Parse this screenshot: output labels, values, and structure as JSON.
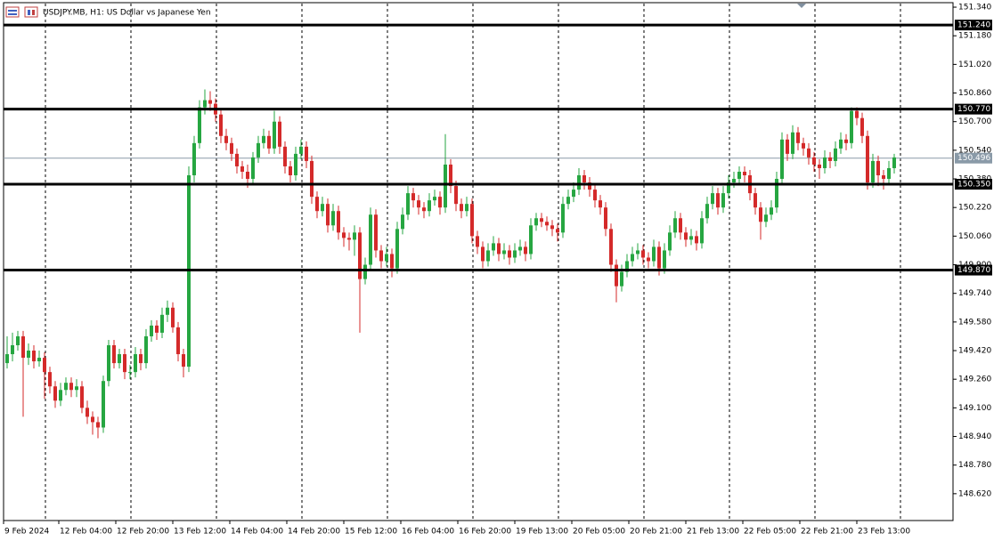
{
  "header": {
    "symbol_text": "USDJPY.MB, H1:  US Dollar vs Japanese Yen"
  },
  "chart_data": {
    "type": "candlestick",
    "open": [
      149.35,
      149.4,
      149.45,
      149.5,
      149.38,
      149.42,
      149.36,
      149.38,
      149.3,
      149.22,
      149.14,
      149.2,
      149.24,
      149.2,
      149.22,
      149.1,
      149.05,
      149.02,
      148.99,
      149.25,
      149.45,
      149.35,
      149.4,
      149.3,
      149.3,
      149.4,
      149.35,
      149.5,
      149.56,
      149.52,
      149.62,
      149.66,
      149.55,
      149.4,
      149.33,
      150.4,
      150.58,
      150.78,
      150.82,
      150.8,
      150.74,
      150.62,
      150.58,
      150.52,
      150.45,
      150.42,
      150.38,
      150.5,
      150.58,
      150.62,
      150.55,
      150.7,
      150.56,
      150.45,
      150.4,
      150.52,
      150.56,
      150.48,
      150.28,
      150.2,
      150.24,
      150.12,
      150.2,
      150.08,
      150.05,
      150.04,
      150.08,
      149.82,
      149.9,
      150.18,
      149.98,
      149.92,
      149.96,
      149.88,
      150.1,
      150.18,
      150.3,
      150.26,
      150.22,
      150.2,
      150.26,
      150.28,
      150.22,
      150.46,
      150.34,
      150.24,
      150.2,
      150.24,
      150.06,
      150.0,
      149.92,
      149.98,
      150.02,
      149.96,
      149.98,
      149.94,
      149.98,
      150.0,
      149.96,
      150.12,
      150.16,
      150.14,
      150.12,
      150.1,
      150.08,
      150.24,
      150.28,
      150.32,
      150.4,
      150.36,
      150.32,
      150.26,
      150.22,
      150.1,
      149.9,
      149.78,
      149.86,
      149.92,
      149.96,
      149.98,
      149.94,
      149.92,
      150.0,
      149.88,
      149.98,
      150.08,
      150.16,
      150.08,
      150.04,
      150.06,
      150.02,
      150.16,
      150.24,
      150.3,
      150.22,
      150.3,
      150.36,
      150.38,
      150.42,
      150.4,
      150.3,
      150.22,
      150.14,
      150.18,
      150.22,
      150.38,
      150.6,
      150.52,
      150.64,
      150.58,
      150.55,
      150.5,
      150.46,
      150.44,
      150.5,
      150.48,
      150.55,
      150.6,
      150.58,
      150.76,
      150.72,
      150.62,
      150.36,
      150.48,
      150.4,
      150.38,
      150.44
    ],
    "high": [
      149.5,
      149.52,
      149.53,
      149.53,
      149.46,
      149.45,
      149.42,
      149.41,
      149.33,
      149.25,
      149.24,
      149.27,
      149.27,
      149.26,
      149.25,
      149.14,
      149.08,
      149.05,
      149.28,
      149.48,
      149.48,
      149.43,
      149.43,
      149.34,
      149.44,
      149.43,
      149.54,
      149.59,
      149.59,
      149.66,
      149.7,
      149.69,
      149.58,
      149.43,
      150.45,
      150.62,
      150.82,
      150.88,
      150.87,
      150.83,
      150.77,
      150.66,
      150.61,
      150.55,
      150.48,
      150.46,
      150.53,
      150.62,
      150.66,
      150.65,
      150.76,
      150.73,
      150.59,
      150.48,
      150.56,
      150.6,
      150.59,
      150.51,
      150.31,
      150.28,
      150.27,
      150.24,
      150.23,
      150.11,
      150.08,
      150.12,
      150.11,
      149.94,
      150.22,
      150.21,
      150.01,
      150.0,
      149.99,
      150.14,
      150.22,
      150.34,
      150.33,
      150.29,
      150.25,
      150.3,
      150.32,
      150.31,
      150.63,
      150.49,
      150.37,
      150.27,
      150.28,
      150.27,
      150.09,
      150.03,
      150.02,
      150.06,
      150.05,
      150.02,
      150.01,
      150.02,
      150.04,
      150.03,
      150.16,
      150.19,
      150.19,
      150.17,
      150.15,
      150.13,
      150.28,
      150.32,
      150.36,
      150.44,
      150.43,
      150.39,
      150.35,
      150.29,
      150.25,
      150.13,
      149.93,
      149.9,
      149.96,
      150.0,
      150.02,
      150.01,
      149.97,
      150.04,
      150.03,
      150.02,
      150.12,
      150.2,
      150.19,
      150.11,
      150.1,
      150.09,
      150.2,
      150.28,
      150.34,
      150.33,
      150.34,
      150.4,
      150.42,
      150.45,
      150.45,
      150.43,
      150.33,
      150.25,
      150.22,
      150.26,
      150.42,
      150.64,
      150.63,
      150.68,
      150.67,
      150.61,
      150.58,
      150.53,
      150.49,
      150.54,
      150.53,
      150.59,
      150.64,
      150.63,
      150.78,
      150.78,
      150.75,
      150.65,
      150.52,
      150.51,
      150.43,
      150.48,
      150.52
    ],
    "low": [
      149.32,
      149.36,
      149.42,
      149.05,
      149.34,
      149.32,
      149.33,
      149.15,
      149.18,
      149.1,
      149.11,
      149.17,
      149.16,
      149.16,
      149.07,
      149.01,
      148.95,
      148.93,
      148.96,
      149.22,
      149.32,
      149.32,
      149.26,
      149.26,
      149.27,
      149.31,
      149.32,
      149.47,
      149.48,
      149.49,
      149.58,
      149.52,
      149.36,
      149.27,
      149.3,
      150.36,
      150.55,
      150.74,
      150.76,
      150.7,
      150.58,
      150.54,
      150.48,
      150.41,
      150.38,
      150.33,
      150.35,
      150.47,
      150.55,
      150.52,
      150.52,
      150.52,
      150.41,
      150.36,
      150.37,
      150.49,
      150.44,
      150.24,
      150.16,
      150.17,
      150.08,
      150.09,
      150.04,
      150.0,
      149.98,
      149.95,
      149.52,
      149.79,
      149.87,
      149.94,
      149.88,
      149.89,
      149.83,
      149.85,
      150.07,
      150.15,
      150.22,
      150.18,
      150.16,
      150.17,
      150.23,
      150.18,
      150.19,
      150.3,
      150.2,
      150.16,
      150.17,
      150.02,
      149.96,
      149.88,
      149.89,
      149.95,
      149.92,
      149.93,
      149.9,
      149.91,
      149.95,
      149.92,
      149.93,
      150.09,
      150.11,
      150.09,
      150.06,
      150.03,
      150.05,
      150.21,
      150.25,
      150.29,
      150.32,
      150.28,
      150.22,
      150.18,
      150.06,
      149.86,
      149.69,
      149.75,
      149.83,
      149.89,
      149.93,
      149.9,
      149.88,
      149.89,
      149.84,
      149.85,
      149.95,
      150.05,
      150.04,
      150.0,
      150.01,
      149.98,
      149.99,
      150.13,
      150.21,
      150.18,
      150.19,
      150.27,
      150.33,
      150.35,
      150.36,
      150.26,
      150.18,
      150.04,
      150.11,
      150.15,
      150.19,
      150.35,
      150.48,
      150.49,
      150.54,
      150.51,
      150.46,
      150.42,
      150.38,
      150.41,
      150.44,
      150.45,
      150.52,
      150.54,
      150.55,
      150.68,
      150.58,
      150.32,
      150.33,
      150.34,
      150.32,
      150.35,
      150.41
    ],
    "close": [
      149.4,
      149.45,
      149.5,
      149.38,
      149.42,
      149.36,
      149.38,
      149.3,
      149.22,
      149.14,
      149.2,
      149.24,
      149.2,
      149.22,
      149.1,
      149.05,
      149.02,
      148.99,
      149.25,
      149.45,
      149.35,
      149.4,
      149.3,
      149.3,
      149.4,
      149.35,
      149.5,
      149.56,
      149.52,
      149.62,
      149.66,
      149.55,
      149.4,
      149.33,
      150.4,
      150.58,
      150.78,
      150.82,
      150.8,
      150.74,
      150.62,
      150.58,
      150.52,
      150.45,
      150.42,
      150.38,
      150.5,
      150.58,
      150.62,
      150.55,
      150.7,
      150.56,
      150.45,
      150.4,
      150.52,
      150.56,
      150.48,
      150.28,
      150.2,
      150.24,
      150.12,
      150.2,
      150.08,
      150.05,
      150.04,
      150.08,
      149.82,
      149.9,
      150.18,
      149.98,
      149.92,
      149.96,
      149.88,
      150.1,
      150.18,
      150.3,
      150.26,
      150.22,
      150.2,
      150.26,
      150.28,
      150.22,
      150.46,
      150.34,
      150.24,
      150.2,
      150.24,
      150.06,
      150.0,
      149.92,
      149.98,
      150.02,
      149.96,
      149.98,
      149.94,
      149.98,
      150.0,
      149.96,
      150.12,
      150.16,
      150.14,
      150.12,
      150.1,
      150.08,
      150.24,
      150.28,
      150.32,
      150.4,
      150.36,
      150.32,
      150.26,
      150.22,
      150.1,
      149.9,
      149.78,
      149.86,
      149.92,
      149.96,
      149.98,
      149.94,
      149.92,
      150.0,
      149.88,
      149.98,
      150.08,
      150.16,
      150.08,
      150.04,
      150.06,
      150.02,
      150.16,
      150.24,
      150.3,
      150.22,
      150.3,
      150.36,
      150.38,
      150.42,
      150.4,
      150.3,
      150.22,
      150.14,
      150.18,
      150.22,
      150.38,
      150.6,
      150.52,
      150.64,
      150.58,
      150.55,
      150.5,
      150.46,
      150.44,
      150.5,
      150.48,
      150.55,
      150.6,
      150.58,
      150.76,
      150.72,
      150.62,
      150.36,
      150.48,
      150.4,
      150.38,
      150.44,
      150.5
    ],
    "up_color": "#26a641",
    "down_color": "#d42a2a",
    "ylim": [
      148.47,
      151.38
    ],
    "yticks": [
      {
        "value": 148.62,
        "label": "148.620"
      },
      {
        "value": 148.78,
        "label": "148.780"
      },
      {
        "value": 148.94,
        "label": "148.940"
      },
      {
        "value": 149.1,
        "label": "149.100"
      },
      {
        "value": 149.26,
        "label": "149.260"
      },
      {
        "value": 149.42,
        "label": "149.420"
      },
      {
        "value": 149.58,
        "label": "149.580"
      },
      {
        "value": 149.74,
        "label": "149.740"
      },
      {
        "value": 149.9,
        "label": "149.900"
      },
      {
        "value": 150.06,
        "label": "150.060"
      },
      {
        "value": 150.22,
        "label": "150.220"
      },
      {
        "value": 150.38,
        "label": "150.380"
      },
      {
        "value": 150.54,
        "label": "150.540"
      },
      {
        "value": 150.7,
        "label": "150.700"
      },
      {
        "value": 150.86,
        "label": "150.860"
      },
      {
        "value": 151.02,
        "label": "151.020"
      },
      {
        "value": 151.18,
        "label": "151.180"
      },
      {
        "value": 151.34,
        "label": "151.340"
      }
    ],
    "x_tick_labels": [
      "9 Feb 2024",
      "12 Feb 04:00",
      "12 Feb 20:00",
      "13 Feb 12:00",
      "14 Feb 04:00",
      "14 Feb 20:00",
      "15 Feb 12:00",
      "16 Feb 04:00",
      "16 Feb 20:00",
      "19 Feb 13:00",
      "20 Feb 05:00",
      "20 Feb 21:00",
      "21 Feb 13:00",
      "22 Feb 05:00",
      "22 Feb 21:00",
      "23 Feb 13:00"
    ],
    "levels": [
      {
        "value": 151.24,
        "label": "151.240"
      },
      {
        "value": 150.77,
        "label": "150.770"
      },
      {
        "value": 150.35,
        "label": "150.350"
      },
      {
        "value": 149.87,
        "label": "149.870"
      }
    ],
    "current_price": {
      "value": 150.496,
      "label": "150.496"
    }
  }
}
